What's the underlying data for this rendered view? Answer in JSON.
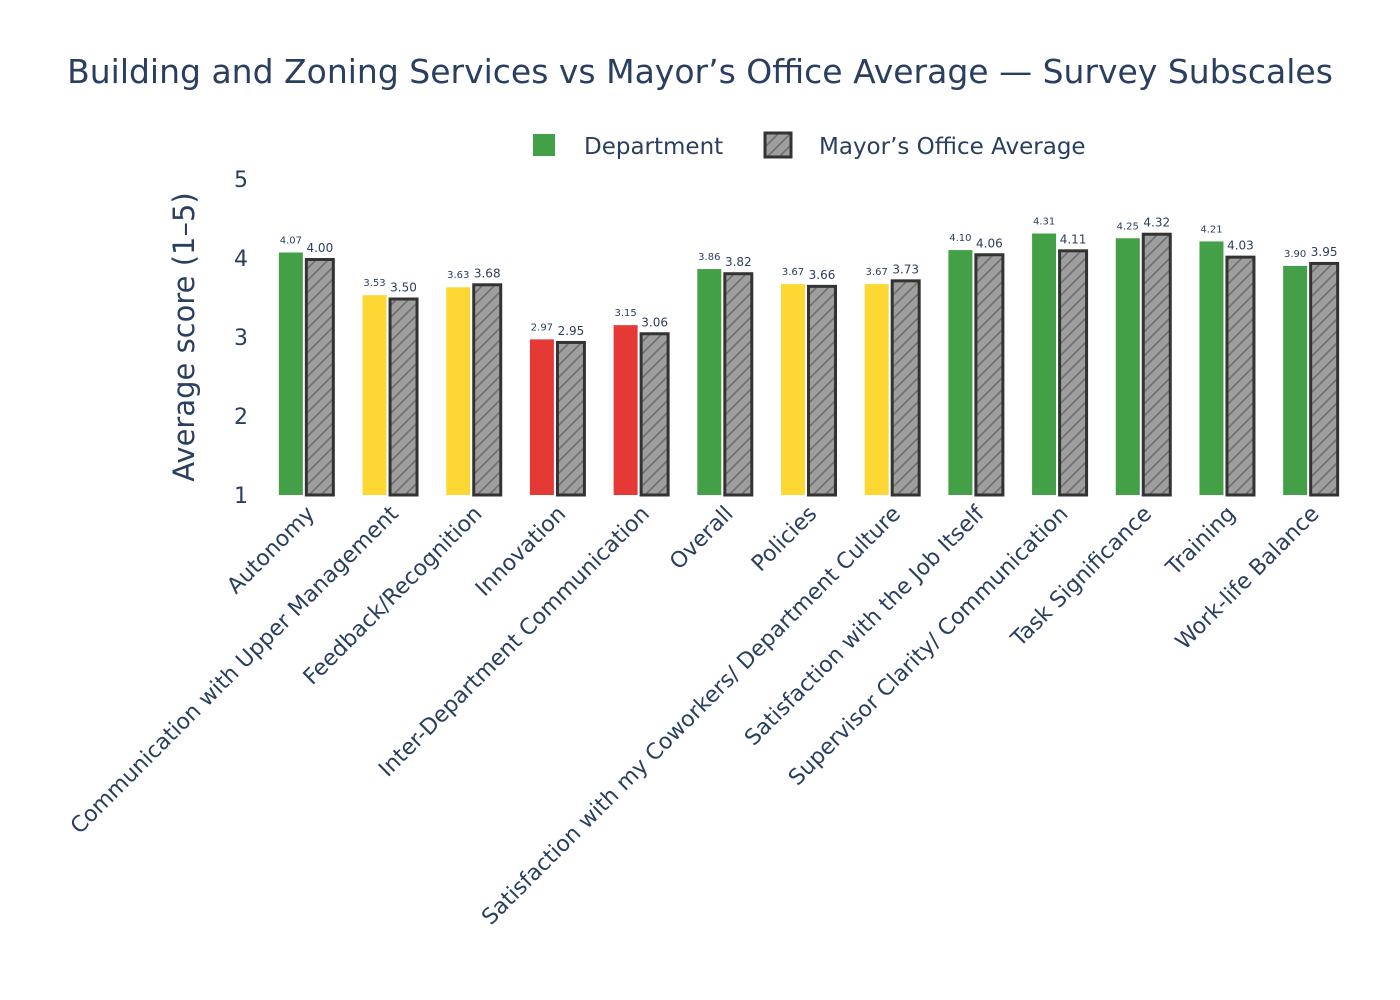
{
  "chart_data": {
    "type": "bar",
    "title": "Building and Zoning Services vs Mayor’s Office Average — Survey Subscales",
    "ylabel": "Average score (1–5)",
    "xlabel": "",
    "ylim": [
      1,
      5
    ],
    "yticks": [
      "1",
      "2",
      "3",
      "4",
      "5"
    ],
    "legend_placement": "top-center",
    "grid": false,
    "categories": [
      "Autonomy",
      "Communication with Upper Management",
      "Feedback/Recognition",
      "Innovation",
      "Inter-Department Communication",
      "Overall",
      "Policies",
      "Satisfaction with my Coworkers/ Department Culture",
      "Satisfaction with the Job Itself",
      "Supervisor Clarity/ Communication",
      "Task Significance",
      "Training",
      "Work-life Balance"
    ],
    "series": [
      {
        "name": "Department",
        "values": [
          4.07,
          3.53,
          3.63,
          2.97,
          3.15,
          3.86,
          3.67,
          3.67,
          4.1,
          4.31,
          4.25,
          4.21,
          3.9
        ],
        "labels": [
          "4.07",
          "3.53",
          "3.63",
          "2.97",
          "3.15",
          "3.86",
          "3.67",
          "3.67",
          "4.10",
          "4.31",
          "4.25",
          "4.21",
          "3.90"
        ],
        "bar_colors": [
          "#43a047",
          "#fdd835",
          "#fdd835",
          "#e53935",
          "#e53935",
          "#43a047",
          "#fdd835",
          "#fdd835",
          "#43a047",
          "#43a047",
          "#43a047",
          "#43a047",
          "#43a047"
        ]
      },
      {
        "name": "Mayor’s Office Average",
        "values": [
          4.0,
          3.5,
          3.68,
          2.95,
          3.06,
          3.82,
          3.66,
          3.73,
          4.06,
          4.11,
          4.32,
          4.03,
          3.95
        ],
        "labels": [
          "4.00",
          "3.50",
          "3.68",
          "2.95",
          "3.06",
          "3.82",
          "3.66",
          "3.73",
          "4.06",
          "4.11",
          "4.32",
          "4.03",
          "3.95"
        ],
        "fill": "#9e9e9e",
        "outline": "#333333",
        "pattern": "diagonal-hatch"
      }
    ],
    "colors": {
      "good": "#43a047",
      "medium": "#fdd835",
      "low": "#e53935",
      "text": "#2a3f5f"
    }
  }
}
